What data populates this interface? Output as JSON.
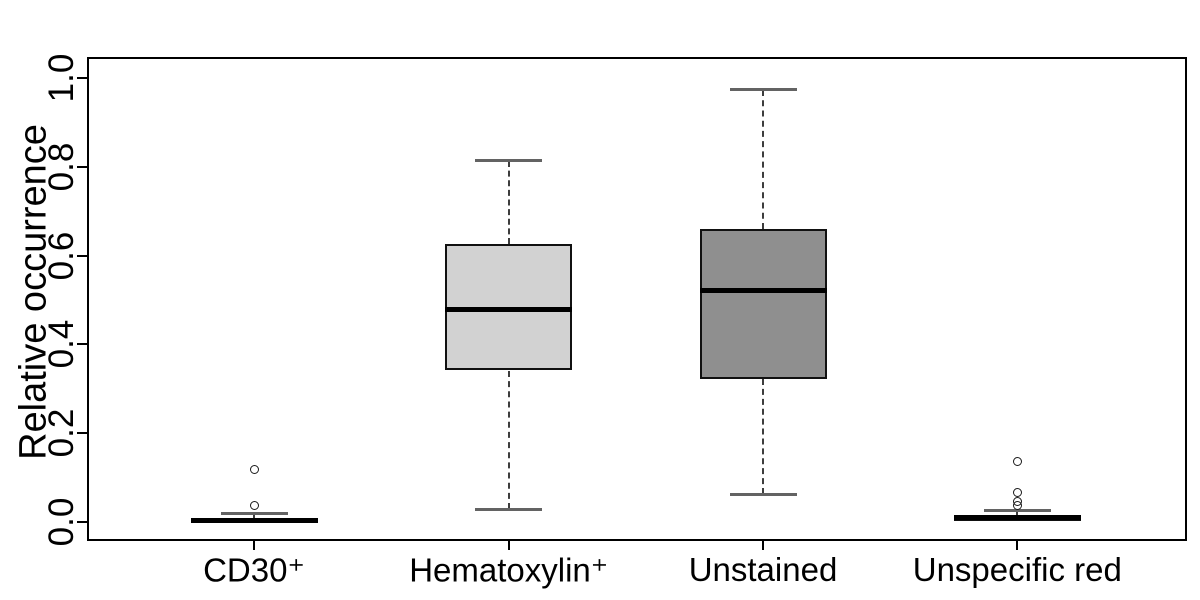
{
  "figure": {
    "background": "#ffffff",
    "frame_color": "#000000"
  },
  "chart_data": {
    "type": "boxplot",
    "title": "",
    "xlabel": "",
    "ylabel": "Relative occurrence",
    "ylim": [
      0,
      1
    ],
    "yticks": [
      "0.0",
      "0.2",
      "0.4",
      "0.6",
      "0.8",
      "1.0"
    ],
    "grid": "off",
    "legend": "none",
    "categories": [
      "CD30⁺",
      "Hematoxylin⁺",
      "Unstained",
      "Unspecific red"
    ],
    "series": [
      {
        "name": "cd30-positive",
        "label": "CD30⁺",
        "fill": "#ffffff",
        "whisker_low": 0.0,
        "q1": 0.0,
        "median": 0.003,
        "q3": 0.009,
        "whisker_high": 0.019,
        "outliers": [
          0.036,
          0.118
        ]
      },
      {
        "name": "hematoxylin-positive",
        "label": "Hematoxylin⁺",
        "fill": "#d2d2d2",
        "whisker_low": 0.028,
        "q1": 0.341,
        "median": 0.478,
        "q3": 0.626,
        "whisker_high": 0.814,
        "outliers": []
      },
      {
        "name": "unstained",
        "label": "Unstained",
        "fill": "#8f8f8f",
        "whisker_low": 0.062,
        "q1": 0.322,
        "median": 0.521,
        "q3": 0.66,
        "whisker_high": 0.974,
        "outliers": []
      },
      {
        "name": "unspecific-red",
        "label": "Unspecific red",
        "fill": "#000000",
        "whisker_low": 0.001,
        "q1": 0.001,
        "median": 0.009,
        "q3": 0.016,
        "whisker_high": 0.025,
        "outliers": [
          0.036,
          0.046,
          0.065,
          0.135
        ]
      }
    ]
  }
}
